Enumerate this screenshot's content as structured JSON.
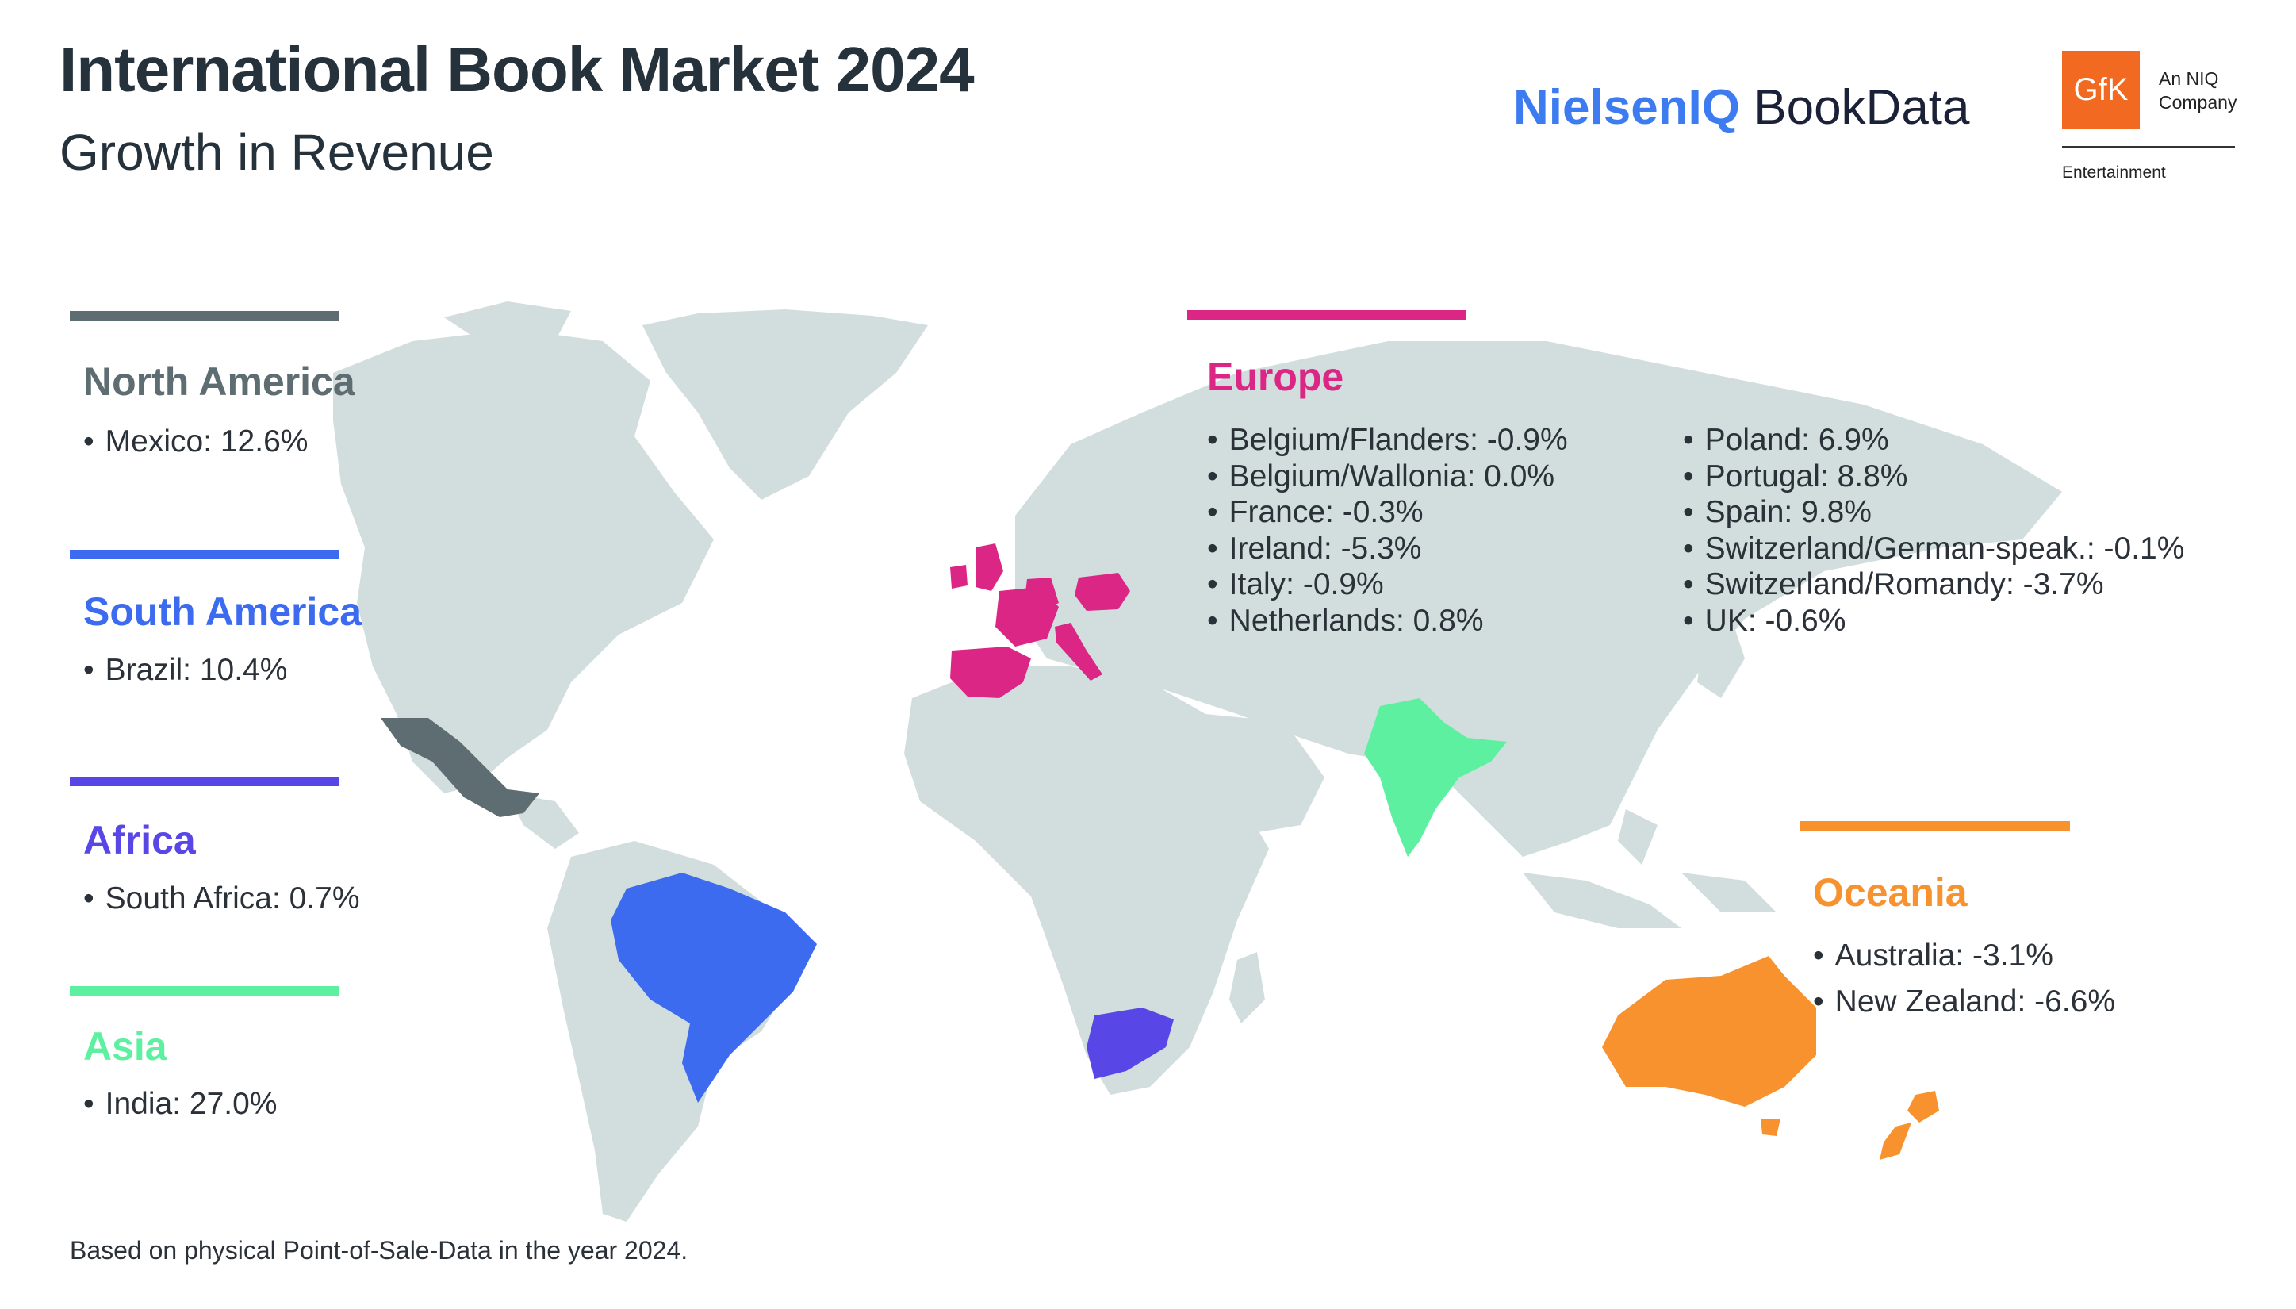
{
  "header": {
    "title": "International Book Market 2024",
    "subtitle": "Growth in Revenue"
  },
  "logos": {
    "niq_part1": "NielsenIQ",
    "niq_part2": "BookData",
    "gfk_mark": "GfK",
    "gfk_tagline_1": "An NIQ",
    "gfk_tagline_2": "Company",
    "gfk_division": "Entertainment"
  },
  "colors": {
    "north_america": "#5e6d72",
    "south_america": "#3c6bf0",
    "africa": "#5846e6",
    "asia": "#5df0a0",
    "europe": "#dc2685",
    "oceania": "#f7922e",
    "land": "#d2dedd"
  },
  "regions": {
    "north_america": {
      "name": "North America",
      "items": [
        "Mexico: 12.6%"
      ]
    },
    "south_america": {
      "name": "South America",
      "items": [
        "Brazil: 10.4%"
      ]
    },
    "africa": {
      "name": "Africa",
      "items": [
        "South Africa: 0.7%"
      ]
    },
    "asia": {
      "name": "Asia",
      "items": [
        "India: 27.0%"
      ]
    },
    "europe": {
      "name": "Europe",
      "items_col1": [
        "Belgium/Flanders: -0.9%",
        "Belgium/Wallonia: 0.0%",
        "France: -0.3%",
        "Ireland: -5.3%",
        "Italy: -0.9%",
        "Netherlands: 0.8%"
      ],
      "items_col2": [
        "Poland: 6.9%",
        "Portugal: 8.8%",
        "Spain: 9.8%",
        "Switzerland/German-speak.: -0.1%",
        "Switzerland/Romandy: -3.7%",
        "UK: -0.6%"
      ]
    },
    "oceania": {
      "name": "Oceania",
      "items": [
        "Australia: -3.1%",
        "New Zealand: -6.6%"
      ]
    }
  },
  "footnote": "Based on physical Point-of-Sale-Data in the year 2024."
}
